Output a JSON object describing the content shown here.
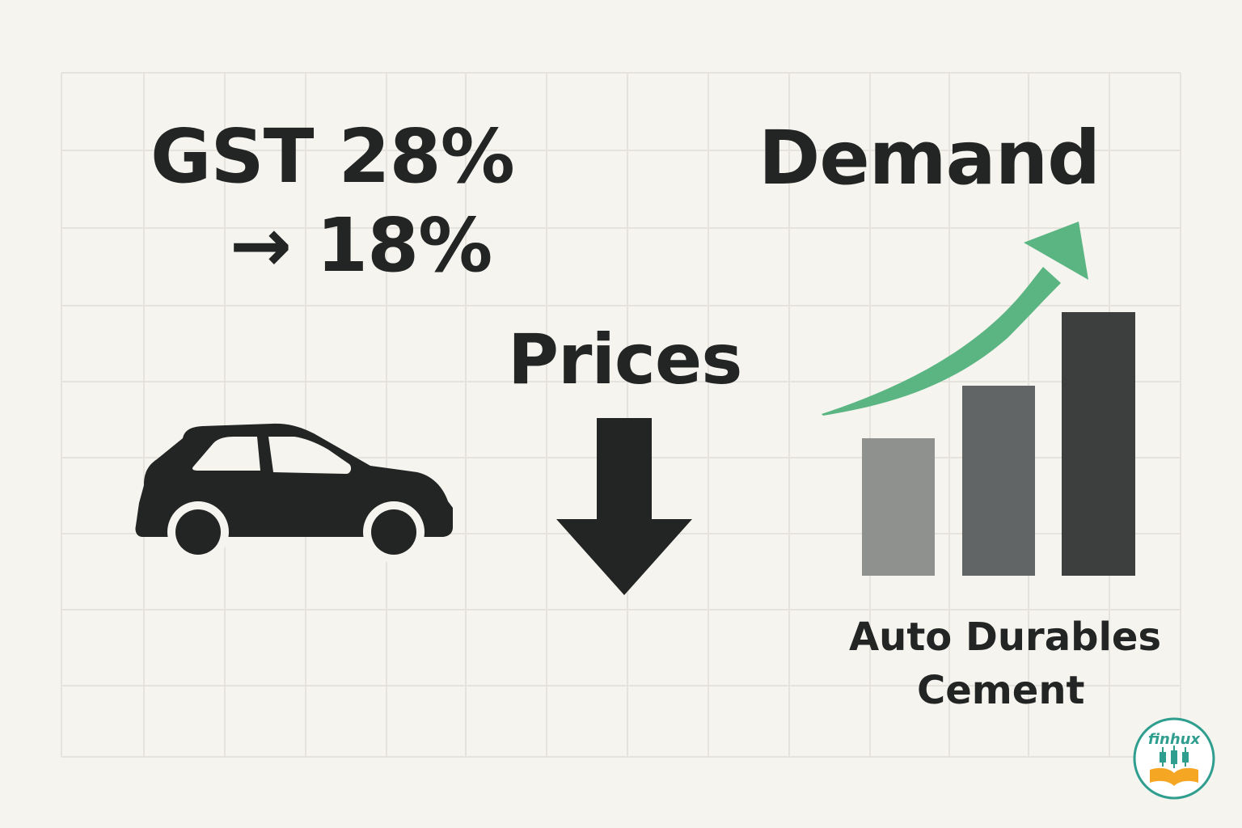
{
  "headline": {
    "gst_line1": "GST 28%",
    "gst_line2": "→ 18%",
    "demand": "Demand",
    "prices": "Prices"
  },
  "categories": [
    "Auto",
    "Durables",
    "Cement"
  ],
  "bar_levels": [
    0.52,
    0.72,
    1.0
  ],
  "logo": {
    "text": "finhux"
  },
  "icons": [
    "car-icon",
    "down-arrow-icon",
    "up-trend-arrow-icon",
    "bar-chart-icon",
    "finhux-logo"
  ],
  "colors": {
    "background": "#f6f4ef",
    "grid": "#e6e3dd",
    "ink": "#222524",
    "green": "#5bb582",
    "bar1": "#8f918f",
    "bar2": "#626566",
    "bar3": "#3d3f3f",
    "logo_teal": "#2f9e8f",
    "logo_orange": "#f5a623"
  }
}
